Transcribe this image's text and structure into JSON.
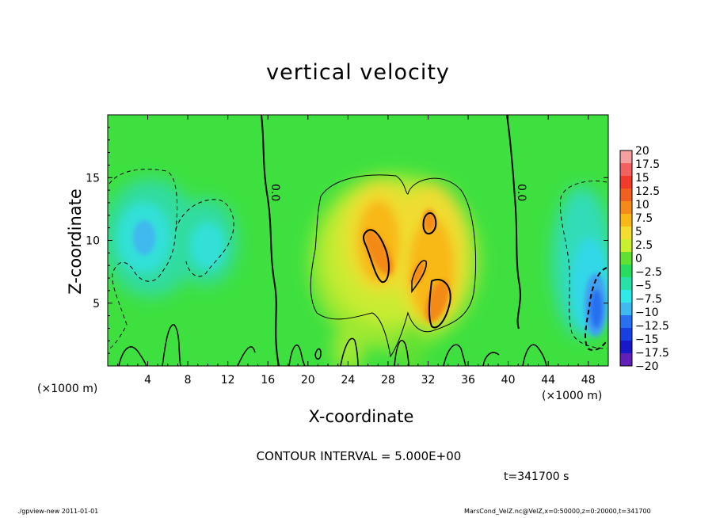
{
  "chart_data": {
    "type": "heatmap",
    "title": "vertical velocity",
    "xlabel": "X-coordinate",
    "ylabel": "Z-coordinate",
    "x_unit_label_left": "(×1000 m)",
    "x_unit_label_right": "(×1000 m)",
    "xlim": [
      0,
      50
    ],
    "ylim": [
      0,
      20
    ],
    "x_ticks": [
      4,
      8,
      12,
      16,
      20,
      24,
      28,
      32,
      36,
      40,
      44,
      48
    ],
    "y_ticks": [
      5,
      10,
      15
    ],
    "contour_interval_text": "CONTOUR INTERVAL = 5.000E+00",
    "time_text": "t=341700 s",
    "contour_zero_labels": [
      "0.0",
      "0.0"
    ],
    "colorbar": {
      "labels": [
        "20",
        "17.5",
        "15",
        "12.5",
        "10",
        "7.5",
        "5",
        "2.5",
        "0",
        "-2.5",
        "-5",
        "-7.5",
        "-10",
        "-12.5",
        "-15",
        "-17.5",
        "-20"
      ],
      "colors": [
        "#f4a0a0",
        "#f26060",
        "#f03a2a",
        "#f06020",
        "#f48a18",
        "#f8b818",
        "#f4dc30",
        "#c8f030",
        "#60e030",
        "#28dc60",
        "#28e0a8",
        "#30e8e8",
        "#40b8f0",
        "#2870f0",
        "#1840e0",
        "#1818c8",
        "#6020b8"
      ]
    },
    "features": [
      {
        "name": "updraft",
        "x_range": [
          20,
          36
        ],
        "z_range": [
          2,
          15
        ],
        "peak": 12.5,
        "peak_locations": [
          [
            27,
            9
          ],
          [
            32,
            6
          ],
          [
            32.5,
            11
          ]
        ]
      },
      {
        "name": "downdraft-left",
        "x_range": [
          0,
          13
        ],
        "z_range": [
          4,
          15
        ],
        "min": -7.5
      },
      {
        "name": "downdraft-right",
        "x_range": [
          44,
          50
        ],
        "z_range": [
          2,
          15
        ],
        "min": -12.5
      }
    ]
  },
  "footer": {
    "left": "./gpview-new   2011-01-01",
    "right": "MarsCond_VelZ.nc@VelZ,x=0:50000,z=0:20000,t=341700"
  }
}
